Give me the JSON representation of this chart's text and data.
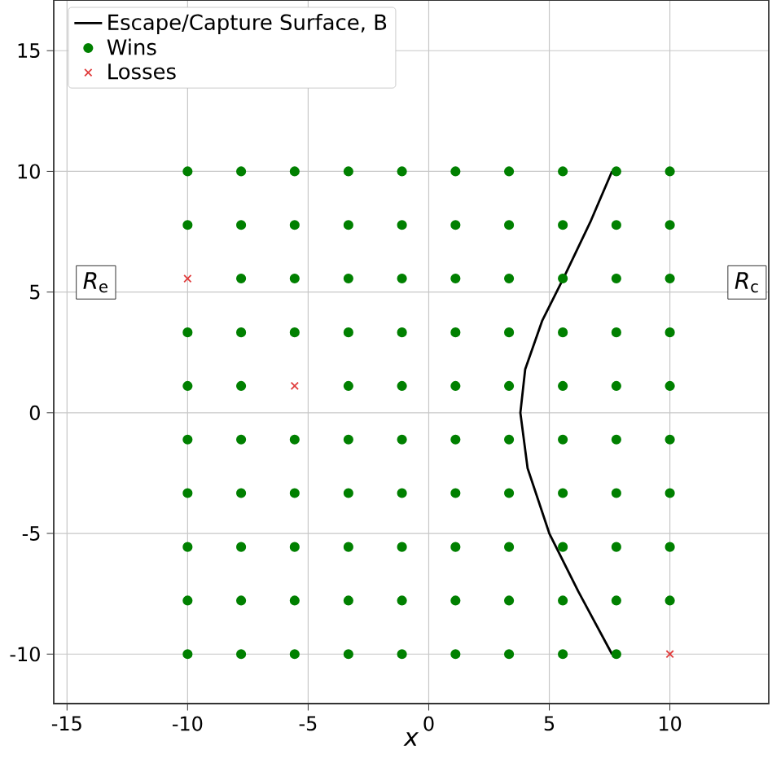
{
  "chart_data": {
    "type": "scatter",
    "xlabel": "x",
    "xlim": [
      -15.55,
      14.1
    ],
    "ylim": [
      -12.05,
      17.1
    ],
    "xticks": [
      -15,
      -10,
      -5,
      0,
      5,
      10
    ],
    "yticks": [
      -10,
      -5,
      0,
      5,
      10,
      15
    ],
    "grid": true,
    "legend": "top left",
    "annotations": [
      "*R*$_{e}$",
      "*R*$_{c}$"
    ],
    "series": [
      {
        "name": "Escape/Capture Surface, B",
        "type": "line",
        "marker": "none",
        "color": "#000000",
        "x": [
          7.6,
          6.7,
          5.6,
          4.7,
          4.0,
          3.8,
          4.1,
          5.0,
          6.2,
          7.6
        ],
        "values": [
          10,
          7.9,
          5.6,
          3.8,
          1.8,
          0,
          -2.3,
          -5.0,
          -7.4,
          -10
        ]
      },
      {
        "name": "Wins",
        "marker": "circle",
        "color": "#008000",
        "x": [
          -10,
          -7.78,
          -5.56,
          -3.33,
          -1.11,
          1.11,
          3.33,
          5.56,
          7.78,
          10,
          -10,
          -7.78,
          -5.56,
          -3.33,
          -1.11,
          1.11,
          3.33,
          5.56,
          7.78,
          10,
          -7.78,
          -5.56,
          -3.33,
          -1.11,
          1.11,
          3.33,
          5.56,
          7.78,
          10,
          -10,
          -7.78,
          -5.56,
          -3.33,
          -1.11,
          1.11,
          3.33,
          5.56,
          7.78,
          10,
          -10,
          -7.78,
          -3.33,
          -1.11,
          1.11,
          3.33,
          5.56,
          7.78,
          10,
          -10,
          -7.78,
          -5.56,
          -3.33,
          -1.11,
          1.11,
          3.33,
          5.56,
          7.78,
          10,
          -10,
          -7.78,
          -5.56,
          -3.33,
          -1.11,
          1.11,
          3.33,
          5.56,
          7.78,
          10,
          -10,
          -7.78,
          -5.56,
          -3.33,
          -1.11,
          1.11,
          3.33,
          5.56,
          7.78,
          10,
          -10,
          -7.78,
          -5.56,
          -3.33,
          -1.11,
          1.11,
          3.33,
          5.56,
          7.78,
          10,
          -10,
          -7.78,
          -5.56,
          -3.33,
          -1.11,
          1.11,
          3.33,
          5.56,
          7.78
        ],
        "values": [
          10,
          10,
          10,
          10,
          10,
          10,
          10,
          10,
          10,
          10,
          7.78,
          7.78,
          7.78,
          7.78,
          7.78,
          7.78,
          7.78,
          7.78,
          7.78,
          7.78,
          5.56,
          5.56,
          5.56,
          5.56,
          5.56,
          5.56,
          5.56,
          5.56,
          5.56,
          3.33,
          3.33,
          3.33,
          3.33,
          3.33,
          3.33,
          3.33,
          3.33,
          3.33,
          3.33,
          1.11,
          1.11,
          1.11,
          1.11,
          1.11,
          1.11,
          1.11,
          1.11,
          1.11,
          -1.11,
          -1.11,
          -1.11,
          -1.11,
          -1.11,
          -1.11,
          -1.11,
          -1.11,
          -1.11,
          -1.11,
          -3.33,
          -3.33,
          -3.33,
          -3.33,
          -3.33,
          -3.33,
          -3.33,
          -3.33,
          -3.33,
          -3.33,
          -5.56,
          -5.56,
          -5.56,
          -5.56,
          -5.56,
          -5.56,
          -5.56,
          -5.56,
          -5.56,
          -5.56,
          -7.78,
          -7.78,
          -7.78,
          -7.78,
          -7.78,
          -7.78,
          -7.78,
          -7.78,
          -7.78,
          -7.78,
          -10,
          -10,
          -10,
          -10,
          -10,
          -10,
          -10,
          -10,
          -10
        ]
      },
      {
        "name": "Losses",
        "marker": "cross",
        "color": "#e03c3c",
        "x": [
          -10,
          -5.56,
          10
        ],
        "values": [
          5.56,
          1.11,
          -10
        ]
      }
    ]
  }
}
